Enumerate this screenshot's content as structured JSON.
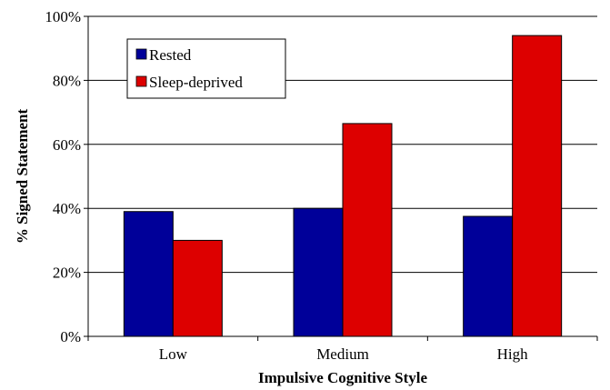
{
  "chart_data": {
    "type": "bar",
    "categories": [
      "Low",
      "Medium",
      "High"
    ],
    "series": [
      {
        "name": "Rested",
        "values": [
          39,
          40,
          37.5
        ],
        "color": "#000099"
      },
      {
        "name": "Sleep-deprived",
        "values": [
          30,
          66.5,
          94
        ],
        "color": "#dd0000"
      }
    ],
    "xlabel": "Impulsive Cognitive Style",
    "ylabel": "% Signed Statement",
    "ylim": [
      0,
      100
    ],
    "yticks": [
      "0%",
      "20%",
      "40%",
      "60%",
      "80%",
      "100%"
    ],
    "grid": true,
    "legend_position": "top-left"
  }
}
